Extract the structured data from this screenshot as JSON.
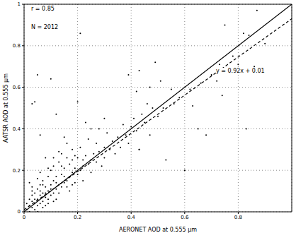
{
  "chart_data": {
    "type": "scatter",
    "x_label": "AERONET AOD at 0.555 µm",
    "y_label": "AATSR AOD at 0.555 µm",
    "xlim": [
      0,
      1
    ],
    "xticks": [
      0,
      0.2,
      0.4,
      0.6,
      0.8
    ],
    "ylim": [
      0,
      1
    ],
    "yticks": [
      0,
      0.2,
      0.4,
      0.6,
      0.8,
      1
    ],
    "grid": true,
    "annotations": [
      {
        "text": "r = 0.85"
      },
      {
        "text": "N = 2012"
      },
      {
        "text": "y = 0.92x + 0.01"
      }
    ],
    "series": [
      {
        "type": "scatter",
        "color": "#000000",
        "marker": "dot",
        "x": [
          0.01,
          0.02,
          0.02,
          0.03,
          0.03,
          0.03,
          0.04,
          0.04,
          0.04,
          0.05,
          0.05,
          0.05,
          0.06,
          0.06,
          0.06,
          0.07,
          0.07,
          0.07,
          0.08,
          0.08,
          0.08,
          0.09,
          0.09,
          0.09,
          0.1,
          0.1,
          0.1,
          0.11,
          0.11,
          0.11,
          0.12,
          0.12,
          0.12,
          0.13,
          0.13,
          0.14,
          0.14,
          0.14,
          0.15,
          0.15,
          0.16,
          0.16,
          0.17,
          0.17,
          0.18,
          0.18,
          0.19,
          0.19,
          0.2,
          0.2,
          0.21,
          0.21,
          0.22,
          0.22,
          0.23,
          0.24,
          0.24,
          0.25,
          0.25,
          0.26,
          0.27,
          0.27,
          0.28,
          0.29,
          0.3,
          0.3,
          0.31,
          0.32,
          0.33,
          0.34,
          0.35,
          0.36,
          0.37,
          0.38,
          0.39,
          0.4,
          0.41,
          0.42,
          0.43,
          0.44,
          0.45,
          0.46,
          0.47,
          0.48,
          0.5,
          0.51,
          0.52,
          0.53,
          0.55,
          0.56,
          0.58,
          0.6,
          0.62,
          0.63,
          0.65,
          0.66,
          0.68,
          0.7,
          0.72,
          0.73,
          0.74,
          0.75,
          0.78,
          0.8,
          0.82,
          0.83,
          0.84,
          0.86,
          0.87,
          0.9,
          0.02,
          0.04,
          0.03,
          0.05,
          0.06,
          0.1,
          0.12,
          0.2,
          0.21,
          0.39,
          0.42,
          0.43,
          0.49,
          0.47,
          0.43,
          0.23,
          0.28,
          0.3,
          0.15,
          0.08,
          0.01,
          0.02,
          0.03,
          0.04,
          0.05,
          0.06,
          0.07,
          0.08,
          0.09,
          0.1,
          0.11,
          0.12,
          0.13,
          0.14,
          0.15,
          0.16,
          0.17,
          0.18,
          0.19,
          0.22,
          0.03,
          0.05,
          0.06,
          0.07,
          0.09,
          0.11,
          0.13,
          0.16,
          0.18,
          0.25
        ],
        "values": [
          0.01,
          0.03,
          0.0,
          0.02,
          0.05,
          0.08,
          0.04,
          0.01,
          0.09,
          0.03,
          0.06,
          0.11,
          0.04,
          0.08,
          0.13,
          0.05,
          0.09,
          0.15,
          0.07,
          0.12,
          0.03,
          0.1,
          0.06,
          0.17,
          0.08,
          0.13,
          0.2,
          0.09,
          0.15,
          0.22,
          0.11,
          0.17,
          0.06,
          0.13,
          0.24,
          0.12,
          0.18,
          0.28,
          0.14,
          0.21,
          0.15,
          0.26,
          0.17,
          0.1,
          0.19,
          0.3,
          0.21,
          0.14,
          0.18,
          0.26,
          0.2,
          0.31,
          0.22,
          0.15,
          0.27,
          0.23,
          0.35,
          0.25,
          0.19,
          0.28,
          0.24,
          0.33,
          0.29,
          0.22,
          0.31,
          0.26,
          0.38,
          0.3,
          0.34,
          0.28,
          0.36,
          0.31,
          0.42,
          0.37,
          0.33,
          0.41,
          0.45,
          0.39,
          0.3,
          0.47,
          0.43,
          0.52,
          0.37,
          0.5,
          0.46,
          0.63,
          0.5,
          0.25,
          0.59,
          0.52,
          0.55,
          0.2,
          0.59,
          0.51,
          0.4,
          0.62,
          0.37,
          0.66,
          0.63,
          0.71,
          0.56,
          0.9,
          0.75,
          0.71,
          0.86,
          0.4,
          0.85,
          0.7,
          0.97,
          0.81,
          0.14,
          0.53,
          0.52,
          0.66,
          0.37,
          0.64,
          0.47,
          0.53,
          0.86,
          0.66,
          0.58,
          0.68,
          0.72,
          0.6,
          0.3,
          0.43,
          0.4,
          0.45,
          0.36,
          0.26,
          0.04,
          0.06,
          0.1,
          0.06,
          0.0,
          0.1,
          0.02,
          0.09,
          0.04,
          0.11,
          0.05,
          0.14,
          0.09,
          0.22,
          0.17,
          0.12,
          0.23,
          0.13,
          0.27,
          0.25,
          0.12,
          0.16,
          0.19,
          0.13,
          0.21,
          0.26,
          0.29,
          0.33,
          0.25,
          0.4
        ]
      },
      {
        "type": "line",
        "color": "#000000",
        "line_style": "solid",
        "x": [
          0,
          1
        ],
        "values": [
          0,
          1
        ]
      },
      {
        "type": "line",
        "color": "#000000",
        "line_style": "dashed",
        "x": [
          0,
          1
        ],
        "values": [
          0.01,
          0.93
        ]
      }
    ]
  }
}
